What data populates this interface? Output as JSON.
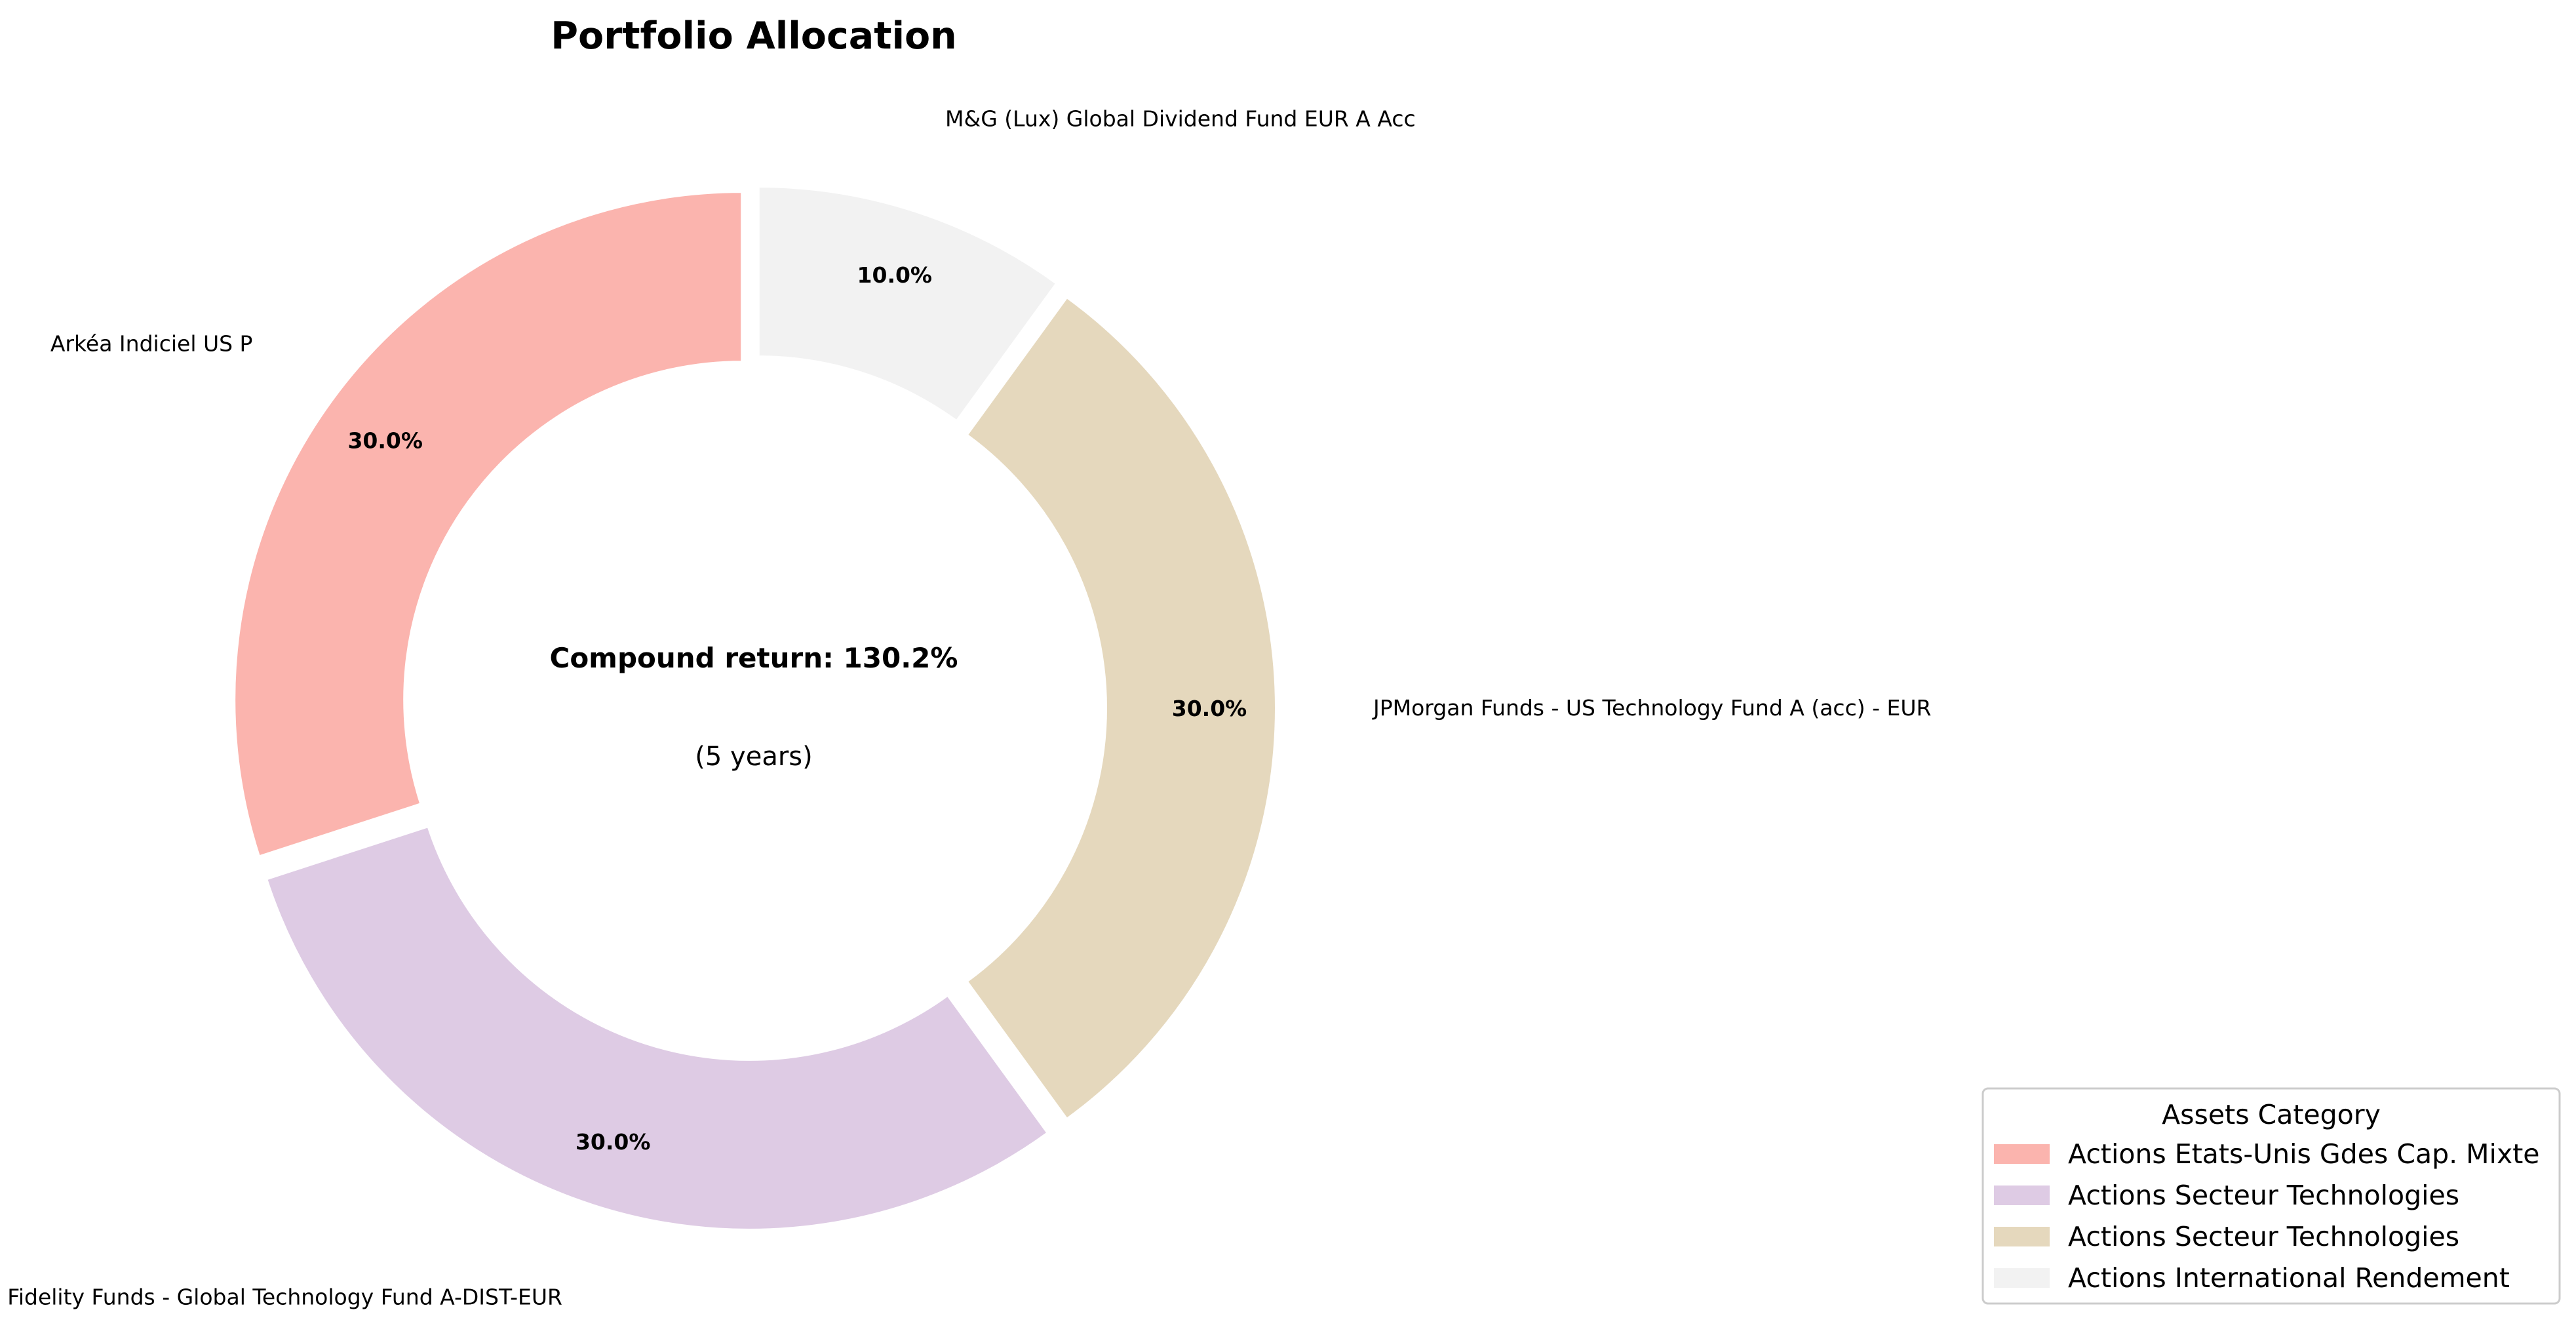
{
  "chart_data": {
    "type": "pie",
    "title": "Portfolio Allocation",
    "center_text": "Compound return: 130.2%",
    "center_subtext": "(5 years)",
    "slices": [
      {
        "label": "Arkéa Indiciel US P",
        "value": 30.0,
        "pct_label": "30.0%",
        "category": "Actions Etats-Unis Gdes Cap. Mixte",
        "color": "#fbb4ae"
      },
      {
        "label": "Fidelity Funds - Global Technology Fund A-DIST-EUR",
        "value": 30.0,
        "pct_label": "30.0%",
        "category": "Actions Secteur Technologies",
        "color": "#decbe4"
      },
      {
        "label": "JPMorgan Funds - US Technology Fund A (acc) - EUR",
        "value": 30.0,
        "pct_label": "30.0%",
        "category": "Actions Secteur Technologies",
        "color": "#e5d8bd"
      },
      {
        "label": "M&G (Lux) Global Dividend Fund EUR A Acc",
        "value": 10.0,
        "pct_label": "10.0%",
        "category": "Actions International Rendement",
        "color": "#f2f2f2"
      }
    ],
    "legend": {
      "title": "Assets Category",
      "placement": "lower-right",
      "entries": [
        {
          "label": "Actions Etats-Unis Gdes Cap. Mixte",
          "color": "#fbb4ae"
        },
        {
          "label": "Actions Secteur Technologies",
          "color": "#decbe4"
        },
        {
          "label": "Actions Secteur Technologies",
          "color": "#e5d8bd"
        },
        {
          "label": "Actions International Rendement",
          "color": "#f2f2f2"
        }
      ]
    }
  }
}
